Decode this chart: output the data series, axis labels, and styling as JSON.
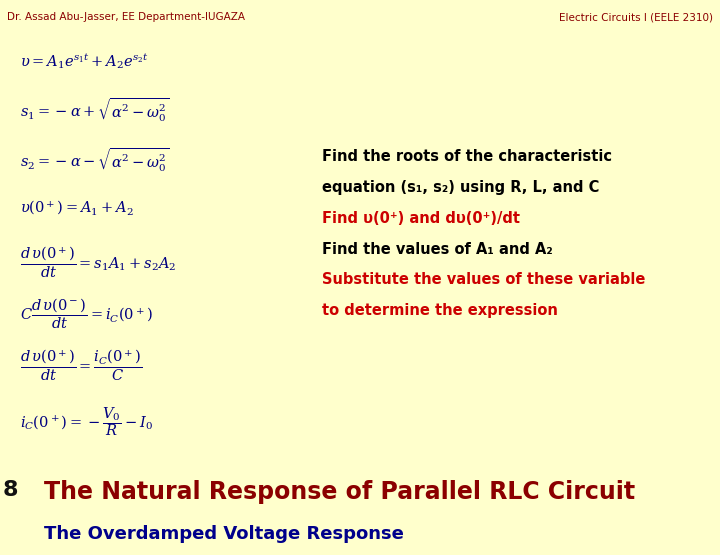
{
  "bg_color": "#FFFFCC",
  "title_main": "The Natural Response of Parallel RLC Circuit",
  "title_sub": "The Overdamped Voltage Response",
  "slide_number": "8",
  "title_color_main": "#8B0000",
  "title_color_sub": "#00008B",
  "header_bar_color": "#8B0000",
  "footer_left": "Dr. Assad Abu-Jasser, EE Department-IUGAZA",
  "footer_right": "Electric Circuits I (EELE 2310)",
  "footer_color": "#8B0000",
  "equations": [
    "\\upsilon = A_1e^{s_1t} + A_2e^{s_2t}",
    "s_1 = -\\alpha + \\sqrt{\\alpha^2 - \\omega_0^2}",
    "s_2 = -\\alpha - \\sqrt{\\alpha^2 - \\omega_0^2}",
    "\\upsilon(0^+) = A_1 + A_2",
    "\\dfrac{d\\,\\upsilon(0^+)}{dt} = s_1A_1 + s_2A_2",
    "C\\dfrac{d\\,\\upsilon(0^-)}{dt} = i_C(0^+)",
    "\\dfrac{d\\,\\upsilon(0^+)}{dt} = \\dfrac{i_C(0^+)}{C}",
    "i_C(0^+) = -\\dfrac{V_0}{R} - I_0"
  ],
  "eq_color": "#000080",
  "eq_bg": "#00CCFF",
  "eq_border_color": "#000080",
  "steps_border_color": "#0000CC",
  "steps_bg": "#FFFFCC",
  "steps_lines": [
    {
      "text": "Find the roots of the characteristic",
      "color": "#000000"
    },
    {
      "text": "equation (s₁, s₂) using R, L, and C",
      "color": "#000000"
    },
    {
      "text": "Find υ(0⁺) and dυ(0⁺)/dt",
      "color": "#CC0000"
    },
    {
      "text": "Find the values of A₁ and A₂",
      "color": "#000000"
    },
    {
      "text": "Substitute the values of these variable",
      "color": "#CC0000"
    },
    {
      "text": "to determine the expression",
      "color": "#CC0000"
    }
  ]
}
